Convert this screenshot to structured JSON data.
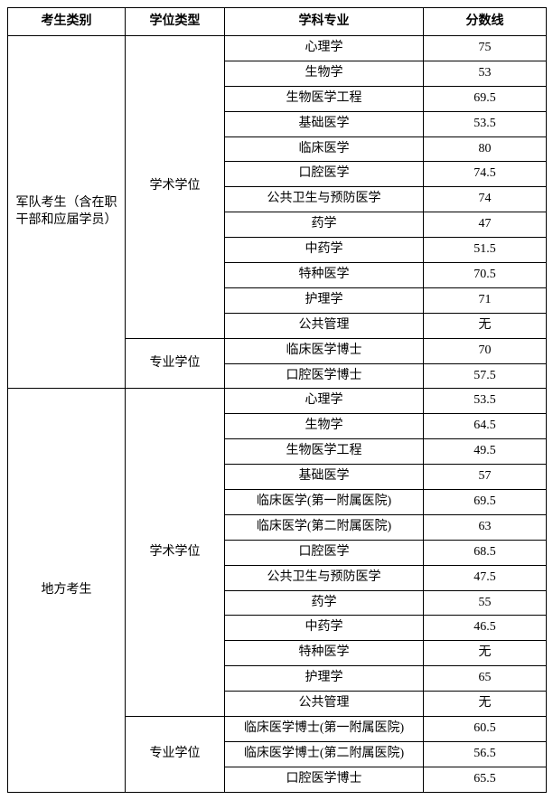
{
  "colors": {
    "background": "#ffffff",
    "border": "#000000",
    "text": "#000000"
  },
  "header": {
    "category": "考生类别",
    "degree_type": "学位类型",
    "subject": "学科专业",
    "score": "分数线"
  },
  "groups": [
    {
      "category": "军队考生（含在职干部和应届学员）",
      "degree_groups": [
        {
          "degree_type": "学术学位",
          "rows": [
            {
              "subject": "心理学",
              "score": "75"
            },
            {
              "subject": "生物学",
              "score": "53"
            },
            {
              "subject": "生物医学工程",
              "score": "69.5"
            },
            {
              "subject": "基础医学",
              "score": "53.5"
            },
            {
              "subject": "临床医学",
              "score": "80"
            },
            {
              "subject": "口腔医学",
              "score": "74.5"
            },
            {
              "subject": "公共卫生与预防医学",
              "score": "74"
            },
            {
              "subject": "药学",
              "score": "47"
            },
            {
              "subject": "中药学",
              "score": "51.5"
            },
            {
              "subject": "特种医学",
              "score": "70.5"
            },
            {
              "subject": "护理学",
              "score": "71"
            },
            {
              "subject": "公共管理",
              "score": "无"
            }
          ]
        },
        {
          "degree_type": "专业学位",
          "rows": [
            {
              "subject": "临床医学博士",
              "score": "70"
            },
            {
              "subject": "口腔医学博士",
              "score": "57.5"
            }
          ]
        }
      ]
    },
    {
      "category": "地方考生",
      "degree_groups": [
        {
          "degree_type": "学术学位",
          "rows": [
            {
              "subject": "心理学",
              "score": "53.5"
            },
            {
              "subject": "生物学",
              "score": "64.5"
            },
            {
              "subject": "生物医学工程",
              "score": "49.5"
            },
            {
              "subject": "基础医学",
              "score": "57"
            },
            {
              "subject": "临床医学(第一附属医院)",
              "score": "69.5"
            },
            {
              "subject": "临床医学(第二附属医院)",
              "score": "63"
            },
            {
              "subject": "口腔医学",
              "score": "68.5"
            },
            {
              "subject": "公共卫生与预防医学",
              "score": "47.5"
            },
            {
              "subject": "药学",
              "score": "55"
            },
            {
              "subject": "中药学",
              "score": "46.5"
            },
            {
              "subject": "特种医学",
              "score": "无"
            },
            {
              "subject": "护理学",
              "score": "65"
            },
            {
              "subject": "公共管理",
              "score": "无"
            }
          ]
        },
        {
          "degree_type": "专业学位",
          "rows": [
            {
              "subject": "临床医学博士(第一附属医院)",
              "score": "60.5"
            },
            {
              "subject": "临床医学博士(第二附属医院)",
              "score": "56.5"
            },
            {
              "subject": "口腔医学博士",
              "score": "65.5"
            }
          ]
        }
      ]
    }
  ]
}
